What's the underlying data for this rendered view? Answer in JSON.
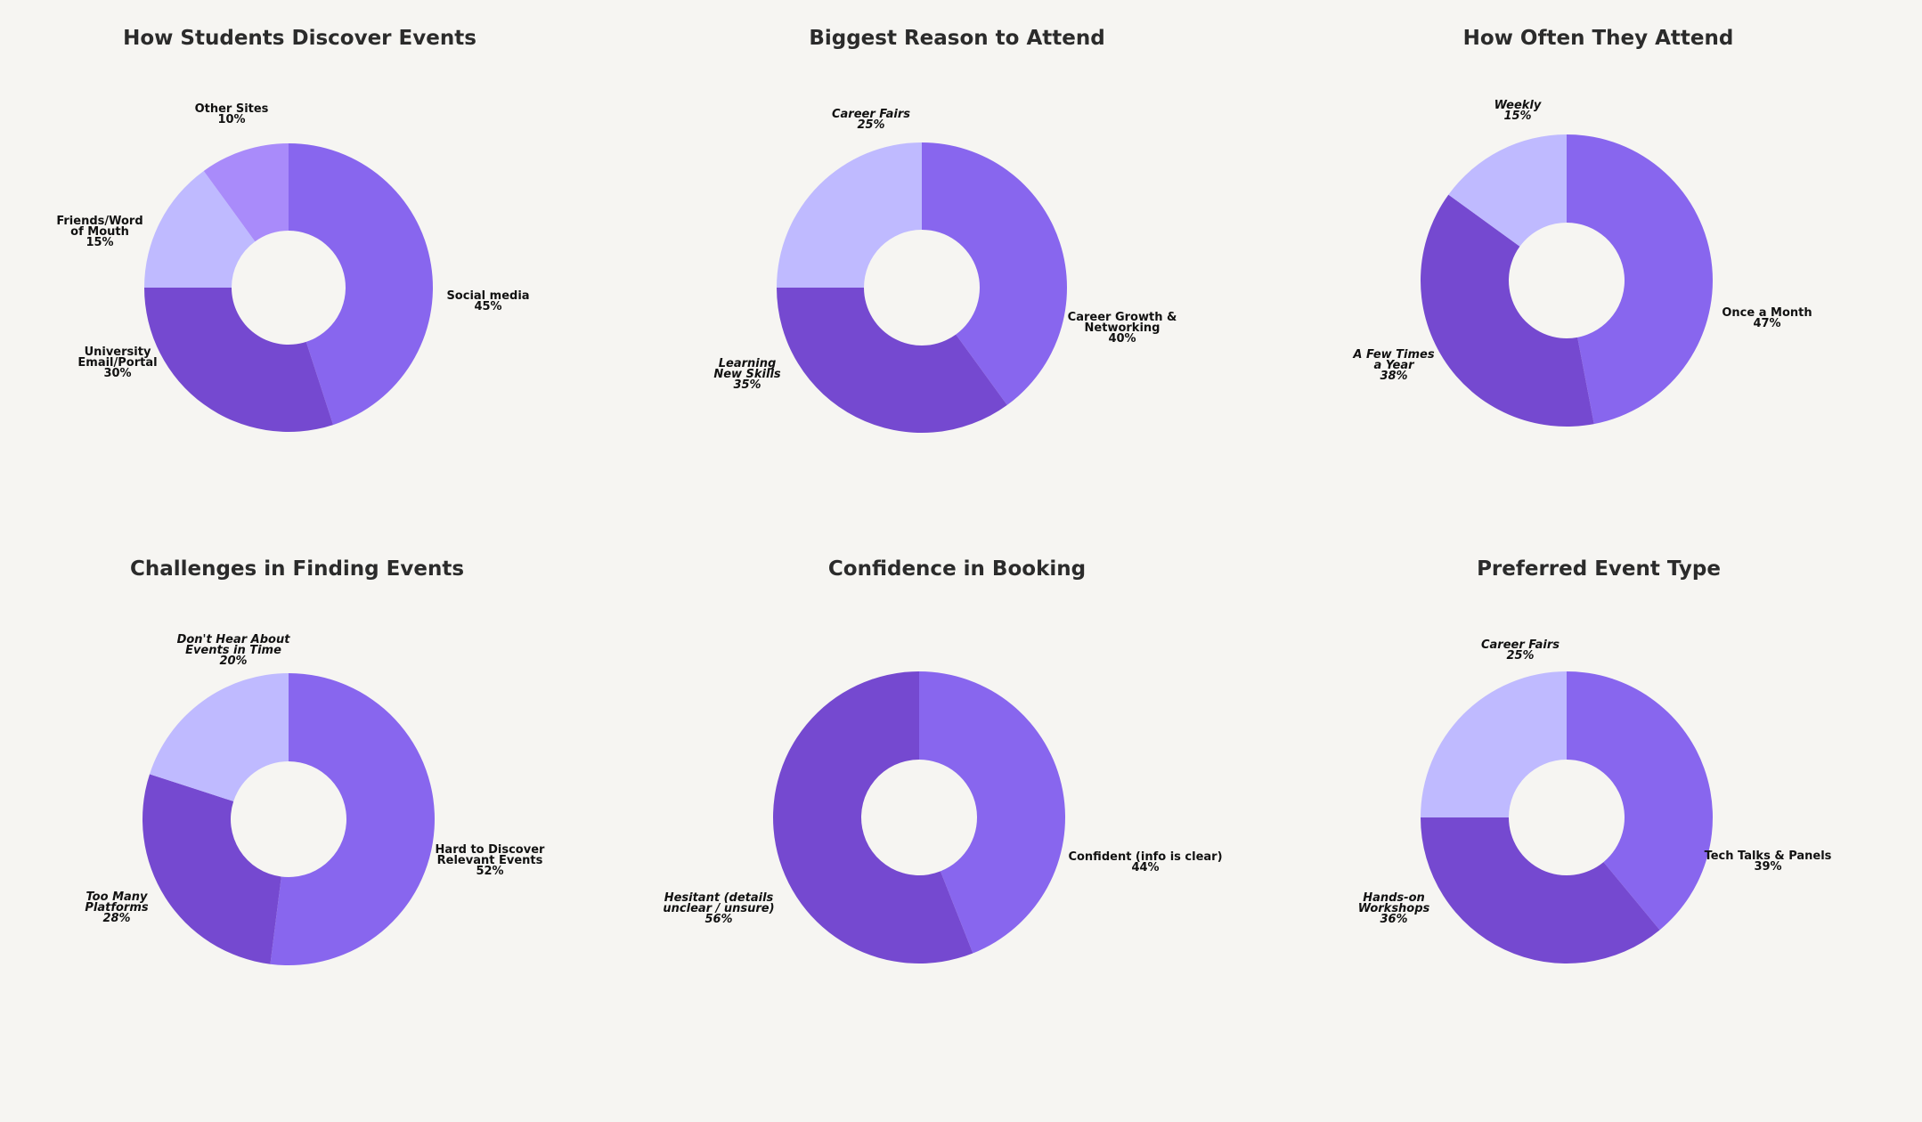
{
  "colors": {
    "background": "#f6f5f2",
    "title": "#2b2b2b",
    "label": "#111111"
  },
  "chart_data": [
    {
      "type": "pie",
      "donut": true,
      "title": "How Students Discover Events",
      "slices": [
        {
          "label": [
            "Social media"
          ],
          "value": 45,
          "pct": "45%",
          "color": "#8866ee",
          "italic": false,
          "label_pos": "right"
        },
        {
          "label": [
            "University",
            "Email/Portal"
          ],
          "value": 30,
          "pct": "30%",
          "color": "#7549d0",
          "italic": false,
          "label_pos": "left"
        },
        {
          "label": [
            "Friends/Word",
            "of Mouth"
          ],
          "value": 15,
          "pct": "15%",
          "color": "#bfbaff",
          "italic": false,
          "label_pos": "left"
        },
        {
          "label": [
            "Other Sites"
          ],
          "value": 10,
          "pct": "10%",
          "color": "#a98bfa",
          "italic": false,
          "label_pos": "top"
        }
      ]
    },
    {
      "type": "pie",
      "donut": true,
      "title": "Biggest Reason to Attend",
      "slices": [
        {
          "label": [
            "Career Growth &",
            "Networking"
          ],
          "value": 40,
          "pct": "40%",
          "color": "#8866ee",
          "italic": false,
          "label_pos": "right"
        },
        {
          "label": [
            "Learning",
            "New Skills"
          ],
          "value": 35,
          "pct": "35%",
          "color": "#7549d0",
          "italic": true,
          "label_pos": "left"
        },
        {
          "label": [
            "Career Fairs"
          ],
          "value": 25,
          "pct": "25%",
          "color": "#bfbaff",
          "italic": true,
          "label_pos": "top"
        }
      ]
    },
    {
      "type": "pie",
      "donut": true,
      "title": "How Often They Attend",
      "slices": [
        {
          "label": [
            "Once a Month"
          ],
          "value": 47,
          "pct": "47%",
          "color": "#8866ee",
          "italic": false,
          "label_pos": "right"
        },
        {
          "label": [
            "A Few Times",
            "a Year"
          ],
          "value": 38,
          "pct": "38%",
          "color": "#7549d0",
          "italic": true,
          "label_pos": "left"
        },
        {
          "label": [
            "Weekly"
          ],
          "value": 15,
          "pct": "15%",
          "color": "#bfbaff",
          "italic": true,
          "label_pos": "top"
        }
      ]
    },
    {
      "type": "pie",
      "donut": true,
      "title": "Challenges in Finding Events",
      "slices": [
        {
          "label": [
            "Hard to Discover",
            "Relevant Events"
          ],
          "value": 52,
          "pct": "52%",
          "color": "#8866ee",
          "italic": false,
          "label_pos": "right"
        },
        {
          "label": [
            "Too Many",
            "Platforms"
          ],
          "value": 28,
          "pct": "28%",
          "color": "#7549d0",
          "italic": true,
          "label_pos": "left"
        },
        {
          "label": [
            "Don't Hear About",
            "Events in Time"
          ],
          "value": 20,
          "pct": "20%",
          "color": "#bfbaff",
          "italic": true,
          "label_pos": "top"
        }
      ]
    },
    {
      "type": "pie",
      "donut": true,
      "title": "Confidence in Booking",
      "slices": [
        {
          "label": [
            "Confident (info is clear)"
          ],
          "value": 44,
          "pct": "44%",
          "color": "#8866ee",
          "italic": false,
          "label_pos": "right"
        },
        {
          "label": [
            "Hesitant (details",
            "unclear / unsure)"
          ],
          "value": 56,
          "pct": "56%",
          "color": "#7549d0",
          "italic": true,
          "label_pos": "left"
        }
      ]
    },
    {
      "type": "pie",
      "donut": true,
      "title": "Preferred Event Type",
      "slices": [
        {
          "label": [
            "Tech Talks & Panels"
          ],
          "value": 39,
          "pct": "39%",
          "color": "#8866ee",
          "italic": false,
          "label_pos": "right"
        },
        {
          "label": [
            "Hands-on",
            "Workshops"
          ],
          "value": 36,
          "pct": "36%",
          "color": "#7549d0",
          "italic": true,
          "label_pos": "left"
        },
        {
          "label": [
            "Career Fairs"
          ],
          "value": 25,
          "pct": "25%",
          "color": "#bfbaff",
          "italic": true,
          "label_pos": "top"
        }
      ]
    }
  ]
}
